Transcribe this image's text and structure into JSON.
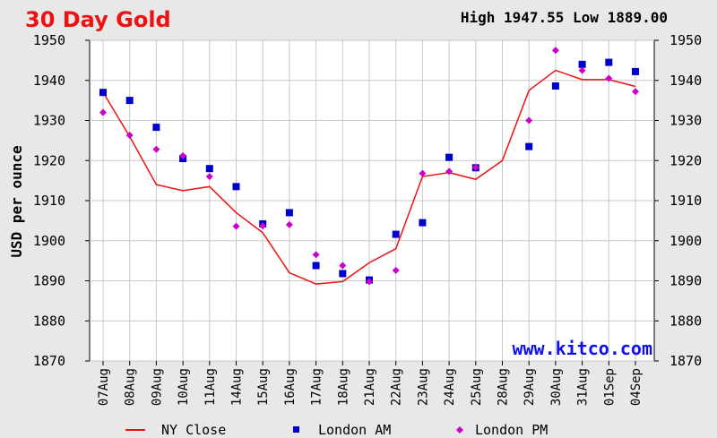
{
  "chart_data": {
    "type": "line",
    "title": "30 Day Gold",
    "high_low": "High 1947.55 Low 1889.00",
    "ylabel": "USD per ounce",
    "ylim": [
      1870,
      1950
    ],
    "yticks": [
      1950,
      1940,
      1930,
      1920,
      1910,
      1900,
      1890,
      1880,
      1870
    ],
    "categories": [
      "07Aug",
      "08Aug",
      "09Aug",
      "10Aug",
      "11Aug",
      "14Aug",
      "15Aug",
      "16Aug",
      "17Aug",
      "18Aug",
      "21Aug",
      "22Aug",
      "23Aug",
      "24Aug",
      "25Aug",
      "28Aug",
      "29Aug",
      "30Aug",
      "31Aug",
      "01Sep",
      "04Sep"
    ],
    "series": [
      {
        "name": "NY Close",
        "style": "line",
        "color": "#ee1111",
        "values": [
          1937,
          1926,
          1914,
          1912.5,
          1913.5,
          1907,
          1902,
          1892,
          1889.2,
          1889.8,
          1894.5,
          1898,
          1916,
          1917,
          1915.3,
          1920,
          1937.5,
          1942.5,
          1940.2,
          1940.2,
          1938.5
        ]
      },
      {
        "name": "London AM",
        "style": "square",
        "color": "#0000cc",
        "values": [
          1937,
          1935,
          1928.3,
          1920.5,
          1918,
          1913.5,
          1904.2,
          1907,
          1893.8,
          1891.8,
          1890.2,
          1901.6,
          1904.5,
          1920.8,
          1918.2,
          null,
          1923.5,
          1938.6,
          1944,
          1944.5,
          1942.2
        ]
      },
      {
        "name": "London PM",
        "style": "diamond",
        "color": "#cc00cc",
        "values": [
          1932,
          1926.3,
          1922.8,
          1921.2,
          1916,
          1903.6,
          1903.7,
          1904,
          1896.5,
          1893.8,
          1889.8,
          1892.6,
          1916.8,
          1917.3,
          1918.3,
          null,
          1930,
          1947.5,
          1942.5,
          1940.5,
          1937.2
        ]
      }
    ],
    "watermark": "www.kitco.com",
    "grid": true
  }
}
